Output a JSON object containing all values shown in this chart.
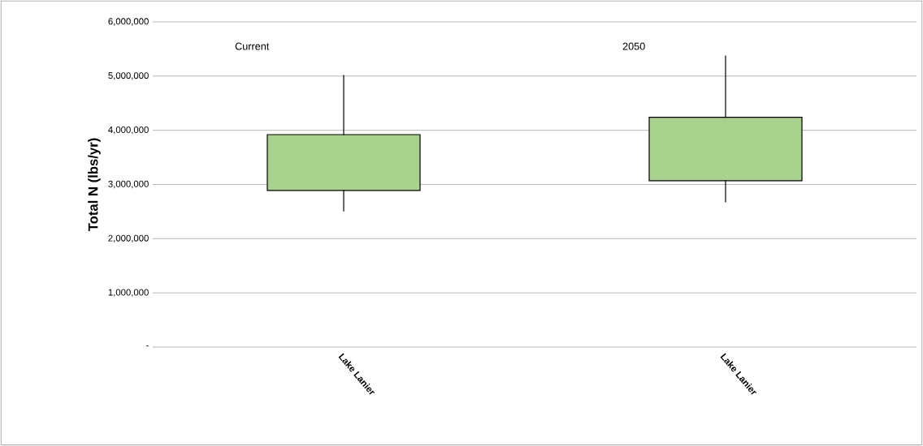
{
  "chart_data": {
    "type": "candlestick",
    "ylabel": "Total N (lbs/yr)",
    "categories": [
      "Lake Lanier",
      "Lake Lanier"
    ],
    "ohlc": [
      [
        2890000,
        5010000,
        2510000,
        3920000
      ],
      [
        3070000,
        5370000,
        2680000,
        4240000
      ]
    ],
    "color": "#a9d18e",
    "annotations": [
      "Current",
      "2050"
    ],
    "ylim": [
      0,
      6000000
    ],
    "yticks": [
      {
        "value": 0,
        "label": "-"
      },
      {
        "value": 1000000,
        "label": "1,000,000"
      },
      {
        "value": 2000000,
        "label": "2,000,000"
      },
      {
        "value": 3000000,
        "label": "3,000,000"
      },
      {
        "value": 4000000,
        "label": "4,000,000"
      },
      {
        "value": 5000000,
        "label": "5,000,000"
      },
      {
        "value": 6000000,
        "label": "6,000,000"
      }
    ],
    "grid": "y"
  }
}
